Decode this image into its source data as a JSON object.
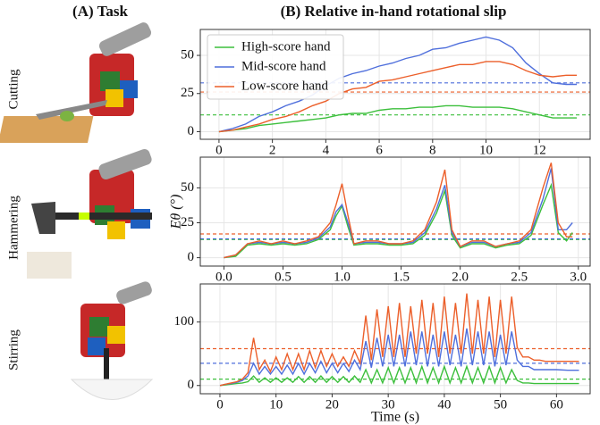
{
  "panel_a": {
    "title": "(A) Task",
    "rows": [
      "Cutting",
      "Hammering",
      "Stirring"
    ]
  },
  "panel_b_title": "(B) Relative in-hand rotational slip",
  "chart_data": [
    {
      "type": "line",
      "legend": "upper left",
      "grid": true,
      "x": [
        0,
        0.5,
        1,
        1.5,
        2,
        2.5,
        3,
        3.5,
        4,
        4.5,
        5,
        5.5,
        6,
        6.5,
        7,
        7.5,
        8,
        8.5,
        9,
        9.5,
        10,
        10.5,
        11,
        11.5,
        12,
        12.5,
        13,
        13.4
      ],
      "xlim": [
        -0.7,
        13.9
      ],
      "xticks": [
        0,
        2,
        4,
        6,
        8,
        10,
        12
      ],
      "ylim": [
        -5,
        67
      ],
      "yticks": [
        0,
        25,
        50
      ],
      "series": [
        {
          "name": "High-score hand",
          "color": "#3cbf3c",
          "mean": 11,
          "values": [
            0,
            1,
            2,
            4,
            5,
            6,
            7,
            8,
            9,
            11,
            12,
            12,
            14,
            15,
            15,
            16,
            16,
            17,
            17,
            16,
            16,
            16,
            15,
            13,
            11,
            9,
            9,
            9
          ]
        },
        {
          "name": "Mid-score hand",
          "color": "#4f6fdc",
          "mean": 32,
          "values": [
            0,
            2,
            5,
            10,
            13,
            17,
            20,
            24,
            30,
            35,
            38,
            40,
            43,
            45,
            48,
            50,
            54,
            55,
            58,
            60,
            62,
            60,
            55,
            45,
            38,
            32,
            31,
            31
          ]
        },
        {
          "name": "Low-score hand",
          "color": "#ec5f2a",
          "mean": 26,
          "values": [
            0,
            1,
            3,
            5,
            8,
            10,
            13,
            17,
            20,
            25,
            28,
            29,
            33,
            34,
            36,
            38,
            40,
            42,
            44,
            44,
            46,
            46,
            44,
            40,
            37,
            36,
            37,
            37
          ]
        }
      ]
    },
    {
      "type": "line",
      "grid": true,
      "ylabel": "Eθ (°)",
      "x": [
        0,
        0.1,
        0.2,
        0.3,
        0.4,
        0.5,
        0.6,
        0.7,
        0.8,
        0.9,
        0.95,
        1.0,
        1.05,
        1.1,
        1.2,
        1.3,
        1.4,
        1.5,
        1.6,
        1.7,
        1.8,
        1.87,
        1.93,
        2.0,
        2.1,
        2.2,
        2.3,
        2.4,
        2.5,
        2.6,
        2.7,
        2.77,
        2.83,
        2.9,
        2.95
      ],
      "xlim": [
        -0.2,
        3.1
      ],
      "xticks": [
        {
          "value": 0,
          "label": "0.0"
        },
        {
          "value": 0.5,
          "label": "0.5"
        },
        {
          "value": 1,
          "label": "1.0"
        },
        {
          "value": 1.5,
          "label": "1.5"
        },
        {
          "value": 2,
          "label": "2.0"
        },
        {
          "value": 2.5,
          "label": "2.5"
        },
        {
          "value": 3,
          "label": "3.0"
        }
      ],
      "ylim": [
        -6,
        72
      ],
      "yticks": [
        0,
        25,
        50
      ],
      "series": [
        {
          "color": "#3cbf3c",
          "mean": 13,
          "values": [
            0,
            1,
            9,
            10,
            9,
            10,
            9,
            10,
            13,
            20,
            30,
            37,
            22,
            9,
            10,
            10,
            9,
            9,
            10,
            16,
            32,
            48,
            16,
            7,
            10,
            10,
            7,
            9,
            10,
            16,
            38,
            52,
            18,
            12,
            18
          ]
        },
        {
          "color": "#4f6fdc",
          "mean": 13.5,
          "values": [
            0,
            2,
            10,
            11,
            10,
            11,
            10,
            11,
            14,
            22,
            33,
            38,
            25,
            10,
            11,
            11,
            10,
            10,
            11,
            18,
            35,
            52,
            18,
            8,
            11,
            11,
            8,
            10,
            11,
            18,
            42,
            64,
            20,
            20,
            25
          ]
        },
        {
          "color": "#ec5f2a",
          "mean": 17,
          "values": [
            0,
            2,
            10,
            12,
            10,
            12,
            10,
            12,
            15,
            25,
            38,
            53,
            30,
            10,
            12,
            12,
            10,
            10,
            12,
            20,
            40,
            63,
            20,
            8,
            12,
            12,
            8,
            10,
            12,
            20,
            50,
            68,
            25,
            15,
            15
          ]
        }
      ]
    },
    {
      "type": "line",
      "grid": true,
      "xlabel": "Time (s)",
      "x": [
        0,
        1,
        2,
        3,
        4,
        5,
        6,
        7,
        8,
        9,
        10,
        11,
        12,
        13,
        14,
        15,
        16,
        17,
        18,
        19,
        20,
        21,
        22,
        23,
        24,
        25,
        26,
        27,
        28,
        29,
        30,
        31,
        32,
        33,
        34,
        35,
        36,
        37,
        38,
        39,
        40,
        41,
        42,
        43,
        44,
        45,
        46,
        47,
        48,
        49,
        50,
        51,
        52,
        53,
        54,
        55,
        56,
        57,
        58,
        60,
        62,
        64
      ],
      "xlim": [
        -3.5,
        66
      ],
      "xticks": [
        0,
        10,
        20,
        30,
        40,
        50,
        60
      ],
      "ylim": [
        -13,
        160
      ],
      "yticks": [
        0,
        100
      ],
      "series": [
        {
          "color": "#3cbf3c",
          "mean": 10,
          "values": [
            0,
            1,
            2,
            3,
            4,
            6,
            15,
            5,
            12,
            5,
            12,
            5,
            12,
            5,
            14,
            5,
            14,
            5,
            15,
            5,
            14,
            5,
            14,
            5,
            15,
            5,
            25,
            4,
            25,
            4,
            28,
            4,
            28,
            4,
            28,
            4,
            30,
            4,
            28,
            4,
            30,
            4,
            28,
            4,
            30,
            4,
            28,
            4,
            30,
            4,
            28,
            4,
            25,
            8,
            4,
            4,
            3,
            3,
            3,
            3,
            3,
            3
          ]
        },
        {
          "color": "#4f6fdc",
          "mean": 35,
          "values": [
            0,
            2,
            3,
            5,
            8,
            15,
            35,
            18,
            30,
            18,
            30,
            18,
            32,
            18,
            35,
            18,
            35,
            20,
            38,
            20,
            35,
            20,
            35,
            22,
            40,
            25,
            70,
            28,
            75,
            30,
            80,
            30,
            80,
            30,
            85,
            32,
            85,
            30,
            80,
            30,
            85,
            32,
            80,
            30,
            90,
            32,
            85,
            32,
            85,
            30,
            80,
            32,
            85,
            40,
            30,
            30,
            25,
            25,
            25,
            25,
            24,
            24
          ]
        },
        {
          "color": "#ec5f2a",
          "mean": 58,
          "values": [
            0,
            2,
            4,
            6,
            10,
            20,
            75,
            25,
            40,
            22,
            45,
            25,
            50,
            25,
            50,
            25,
            55,
            28,
            55,
            30,
            50,
            30,
            45,
            30,
            55,
            35,
            110,
            40,
            120,
            45,
            125,
            45,
            130,
            45,
            125,
            50,
            135,
            50,
            130,
            45,
            140,
            50,
            130,
            50,
            145,
            50,
            135,
            50,
            140,
            45,
            135,
            50,
            140,
            60,
            45,
            45,
            40,
            40,
            38,
            38,
            38,
            38
          ]
        }
      ]
    }
  ]
}
